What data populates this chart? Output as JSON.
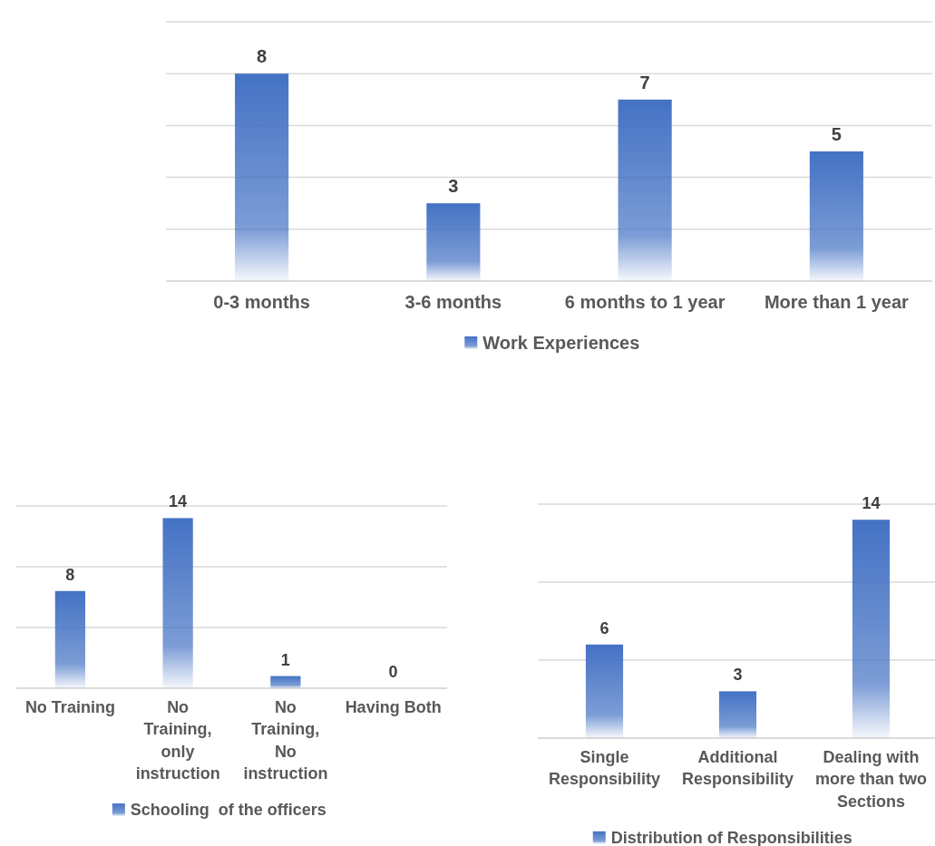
{
  "chart_data": [
    {
      "type": "bar",
      "categories": [
        "0-3 months",
        "3-6 months",
        "6 months to 1 year",
        "More than 1 year"
      ],
      "series": [
        {
          "name": "Work Experiences",
          "color": "#4472c4",
          "values": [
            8,
            3,
            7,
            5
          ]
        }
      ],
      "ylim": [
        0,
        10
      ],
      "yticks": [
        {
          "value": 0,
          "label": null
        },
        {
          "value": 2,
          "label": null
        },
        {
          "value": 4,
          "label": null
        },
        {
          "value": 6,
          "label": null
        },
        {
          "value": 8,
          "label": null
        },
        {
          "value": 10,
          "label": null
        }
      ],
      "tick_labels": "x",
      "grid": "y",
      "legend": "bottom",
      "data_labels": true
    },
    {
      "type": "bar",
      "categories": [
        "No Training",
        "No Training, only instruction",
        "No Training, No instruction",
        "Having Both"
      ],
      "series": [
        {
          "name": "Schooling  of the officers",
          "color": "#4472c4",
          "values": [
            8,
            14,
            1,
            0
          ]
        }
      ],
      "ylim": [
        0,
        15
      ],
      "yticks": [
        {
          "value": 0,
          "label": null
        },
        {
          "value": 5,
          "label": null
        },
        {
          "value": 10,
          "label": null
        },
        {
          "value": 15,
          "label": null
        }
      ],
      "tick_labels": "x",
      "grid": "y",
      "legend": "bottom",
      "data_labels": true
    },
    {
      "type": "bar",
      "categories": [
        "Single Responsibility",
        "Additional Responsibility",
        "Dealing with more than two Sections"
      ],
      "series": [
        {
          "name": "Distribution of Responsibilities",
          "color": "#4472c4",
          "values": [
            6,
            3,
            14
          ]
        }
      ],
      "ylim": [
        0,
        15
      ],
      "yticks": [
        {
          "value": 0,
          "label": null
        },
        {
          "value": 5,
          "label": null
        },
        {
          "value": 10,
          "label": null
        },
        {
          "value": 15,
          "label": null
        }
      ],
      "tick_labels": "x",
      "grid": "y",
      "legend": "bottom",
      "data_labels": true
    }
  ]
}
